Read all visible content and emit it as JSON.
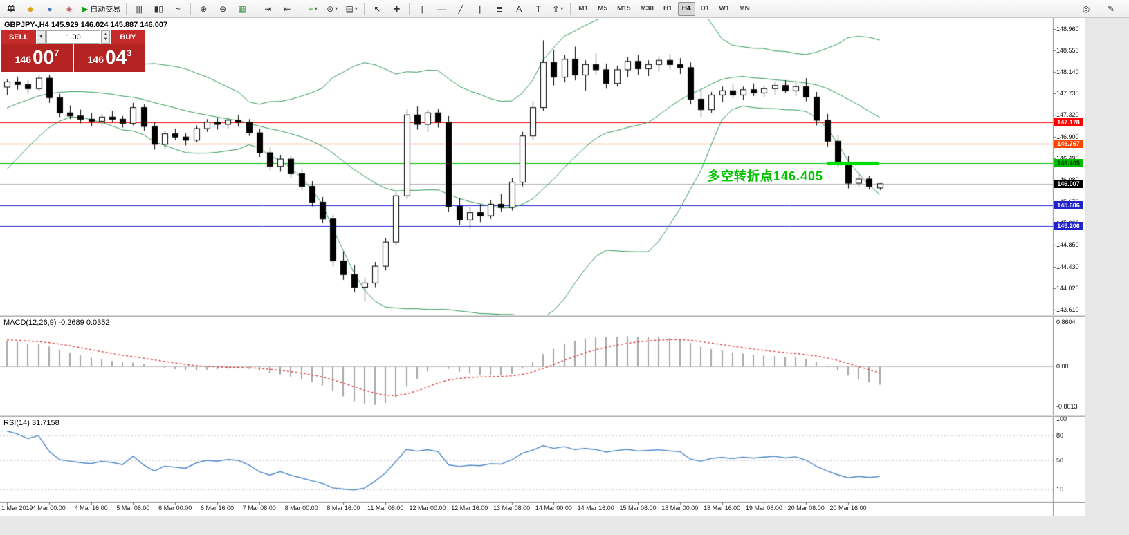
{
  "colors": {
    "oc_red": "#c62b2b",
    "oc_red_dark": "#b52222",
    "annotation_green": "#00c300",
    "autotrading_green": "#16a416",
    "bollinger_green": "#2e9958",
    "rsi_blue": "#4a86c8",
    "macd_histogram": "#a6a6a6",
    "macd_signal_red": "#dd2222"
  },
  "toolbar": {
    "groups": [
      {
        "id": "trade",
        "buttons": [
          {
            "name": "new-order-button",
            "icon": "order-ticket-icon",
            "glyph": "单",
            "color": "#111"
          },
          {
            "name": "chart-window-button",
            "icon": "chart-window-icon",
            "glyph": "◆",
            "color": "#d9a520"
          },
          {
            "name": "market-watch-button",
            "icon": "market-watch-icon",
            "glyph": "●",
            "color": "#4a7ebb"
          },
          {
            "name": "data-window-button",
            "icon": "data-window-icon",
            "glyph": "◈",
            "color": "#b85c5c"
          },
          {
            "name": "autotrading-button",
            "icon": "play-icon",
            "glyph": "▶",
            "color": "#16a416",
            "label": "自动交易"
          }
        ]
      },
      {
        "id": "chart-type",
        "buttons": [
          {
            "name": "bar-chart-button",
            "icon": "ohlc-bars-icon",
            "glyph": "|||"
          },
          {
            "name": "candlestick-chart-button",
            "icon": "candlestick-icon",
            "glyph": "▮▯"
          },
          {
            "name": "line-chart-button",
            "icon": "line-chart-icon",
            "glyph": "~"
          }
        ]
      },
      {
        "id": "zoom",
        "buttons": [
          {
            "name": "zoom-in-button",
            "icon": "magnifier-plus-icon",
            "glyph": "⊕"
          },
          {
            "name": "zoom-out-button",
            "icon": "magnifier-minus-icon",
            "glyph": "⊖"
          },
          {
            "name": "tile-windows-button",
            "icon": "tile-windows-icon",
            "glyph": "▦",
            "color": "#3f8f3f"
          }
        ]
      },
      {
        "id": "scroll",
        "buttons": [
          {
            "name": "auto-scroll-button",
            "icon": "auto-scroll-icon",
            "glyph": "⇥"
          },
          {
            "name": "chart-shift-button",
            "icon": "chart-shift-icon",
            "glyph": "⇤"
          }
        ]
      },
      {
        "id": "objects",
        "buttons": [
          {
            "name": "add-indicator-button",
            "icon": "plus-icon",
            "glyph": "+",
            "color": "#16a416",
            "dropdown": true
          },
          {
            "name": "periods-button",
            "icon": "clock-icon",
            "glyph": "⊙",
            "dropdown": true
          },
          {
            "name": "templates-button",
            "icon": "template-icon",
            "glyph": "▤",
            "dropdown": true
          }
        ]
      },
      {
        "id": "cursor",
        "buttons": [
          {
            "name": "cursor-button",
            "icon": "pointer-icon",
            "glyph": "↖"
          },
          {
            "name": "crosshair-button",
            "icon": "crosshair-icon",
            "glyph": "✚"
          }
        ]
      },
      {
        "id": "draw",
        "buttons": [
          {
            "name": "vertical-line-button",
            "icon": "vertical-line-icon",
            "glyph": "|"
          },
          {
            "name": "horizontal-line-button",
            "icon": "horizontal-line-icon",
            "glyph": "—"
          },
          {
            "name": "trendline-button",
            "icon": "trendline-icon",
            "glyph": "╱"
          },
          {
            "name": "channel-button",
            "icon": "channel-icon",
            "glyph": "∥"
          },
          {
            "name": "fibonacci-button",
            "icon": "fibonacci-icon",
            "glyph": "≣"
          },
          {
            "name": "text-button",
            "icon": "text-icon",
            "glyph": "A"
          },
          {
            "name": "text-label-button",
            "icon": "text-label-icon",
            "glyph": "T"
          },
          {
            "name": "arrows-button",
            "icon": "arrow-icon",
            "glyph": "⇧",
            "dropdown": true
          }
        ]
      }
    ],
    "timeframes": {
      "items": [
        "M1",
        "M5",
        "M15",
        "M30",
        "H1",
        "H4",
        "D1",
        "W1",
        "MN"
      ],
      "active": "H4"
    },
    "right_buttons": [
      {
        "name": "community-button",
        "icon": "circle-icon",
        "glyph": "◎"
      },
      {
        "name": "note-edit-button",
        "icon": "pencil-icon",
        "glyph": "✎"
      }
    ]
  },
  "one_click": {
    "sell_label": "SELL",
    "buy_label": "BUY",
    "volume": "1.00",
    "dropdown_icon": "▼",
    "spin_up_icon": "▲",
    "spin_down_icon": "▼",
    "sell_price": {
      "prefix": "146",
      "big": "00",
      "sup": "7"
    },
    "buy_price": {
      "prefix": "146",
      "big": "04",
      "sup": "3"
    }
  },
  "chart": {
    "title": "GBPJPY-,H4 145.929 146.024 145.887 146.007",
    "macd_label": "MACD(12,26,9) -0.2689 0.0352",
    "rsi_label": "RSI(14) 31.7158",
    "annotation": {
      "text": "多空转折点146.405",
      "color": "#00c300"
    }
  },
  "chart_data": {
    "type": "candlestick",
    "symbol": "GBPJPY-",
    "timeframe": "H4",
    "ohlc_display": {
      "open": "145.929",
      "high": "146.024",
      "low": "145.887",
      "close": "146.007"
    },
    "price_axis": {
      "labels": [
        "148.960",
        "148.550",
        "148.140",
        "147.730",
        "147.320",
        "146.900",
        "146.490",
        "146.080",
        "145.670",
        "145.260",
        "144.850",
        "144.430",
        "144.020",
        "143.610"
      ]
    },
    "time_labels": [
      "1 Mar 2019",
      "4 Mar 00:00",
      "4 Mar 16:00",
      "5 Mar 08:00",
      "6 Mar 00:00",
      "6 Mar 16:00",
      "7 Mar 08:00",
      "8 Mar 00:00",
      "8 Mar 16:00",
      "11 Mar 08:00",
      "12 Mar 00:00",
      "12 Mar 16:00",
      "13 Mar 08:00",
      "14 Mar 00:00",
      "14 Mar 16:00",
      "15 Mar 08:00",
      "18 Mar 00:00",
      "18 Mar 16:00",
      "19 Mar 08:00",
      "20 Mar 08:00",
      "20 Mar 16:00"
    ],
    "hlines": [
      {
        "price": 147.178,
        "label": "147.178",
        "color": "#ff0000",
        "text_color": "#ffffff"
      },
      {
        "price": 146.767,
        "label": "146.767",
        "color": "#ff4500",
        "text_color": "#ffffff"
      },
      {
        "price": 146.405,
        "label": "146.405",
        "color": "#00bb00",
        "text_color": "#003300"
      },
      {
        "price": 145.606,
        "label": "145.606",
        "color": "#2222cc",
        "text_color": "#ffffff"
      },
      {
        "price": 145.206,
        "label": "145.206",
        "color": "#2222cc",
        "text_color": "#ffffff"
      }
    ],
    "bid_marker": {
      "price": 146.007,
      "label": "146.007",
      "box_color": "#000000",
      "text_color": "#ffffff",
      "line_color": "#b4b4b4"
    },
    "turning_segment": {
      "price": 146.405,
      "from_candle": 78,
      "to_candle": 82.5,
      "color": "#00e000"
    },
    "bollinger": {
      "period": 20,
      "deviation": 2,
      "color": "#2e9958"
    },
    "macd": {
      "fast": 12,
      "slow": 26,
      "signal": 9,
      "value": "-0.2689",
      "signal_value": "0.0352",
      "axis_labels": [
        "0.8604",
        "0.00",
        "-0.8013"
      ],
      "histogram_color": "#a6a6a6",
      "signal_color": "#dd2222"
    },
    "rsi": {
      "period": 14,
      "value": "31.7158",
      "axis_labels": [
        "100",
        "80",
        "50",
        "15"
      ],
      "color": "#4a86c8"
    },
    "warmup_closes": [
      145.6,
      145.66,
      145.62,
      145.7,
      145.74,
      145.7,
      145.8,
      145.86,
      145.92,
      146.0,
      146.1,
      146.24,
      146.4,
      146.56,
      146.72,
      146.88,
      147.04,
      147.22,
      147.42,
      147.6,
      147.74,
      147.84,
      147.9,
      147.94,
      147.98,
      147.94,
      147.9,
      147.94,
      147.98,
      147.88
    ],
    "candles": [
      [
        147.85,
        148.0,
        147.7,
        147.95
      ],
      [
        147.95,
        148.05,
        147.8,
        147.9
      ],
      [
        147.9,
        147.98,
        147.72,
        147.82
      ],
      [
        147.82,
        148.08,
        147.78,
        148.02
      ],
      [
        148.02,
        148.08,
        147.55,
        147.65
      ],
      [
        147.65,
        147.72,
        147.28,
        147.36
      ],
      [
        147.36,
        147.5,
        147.24,
        147.3
      ],
      [
        147.3,
        147.42,
        147.16,
        147.24
      ],
      [
        147.24,
        147.36,
        147.1,
        147.2
      ],
      [
        147.2,
        147.34,
        147.12,
        147.28
      ],
      [
        147.28,
        147.4,
        147.18,
        147.24
      ],
      [
        147.24,
        147.3,
        147.08,
        147.16
      ],
      [
        147.16,
        147.55,
        147.12,
        147.46
      ],
      [
        147.46,
        147.52,
        147.02,
        147.1
      ],
      [
        147.1,
        147.18,
        146.66,
        146.76
      ],
      [
        146.76,
        147.02,
        146.68,
        146.96
      ],
      [
        146.96,
        147.06,
        146.84,
        146.9
      ],
      [
        146.9,
        146.98,
        146.74,
        146.84
      ],
      [
        146.84,
        147.12,
        146.8,
        147.06
      ],
      [
        147.06,
        147.24,
        147.0,
        147.18
      ],
      [
        147.18,
        147.26,
        147.04,
        147.14
      ],
      [
        147.14,
        147.28,
        147.06,
        147.22
      ],
      [
        147.22,
        147.32,
        147.1,
        147.18
      ],
      [
        147.18,
        147.24,
        146.92,
        146.98
      ],
      [
        146.98,
        147.06,
        146.52,
        146.6
      ],
      [
        146.6,
        146.7,
        146.26,
        146.34
      ],
      [
        146.34,
        146.56,
        146.24,
        146.48
      ],
      [
        146.48,
        146.54,
        146.12,
        146.2
      ],
      [
        146.2,
        146.3,
        145.88,
        145.96
      ],
      [
        145.96,
        146.06,
        145.58,
        145.66
      ],
      [
        145.66,
        145.76,
        145.26,
        145.34
      ],
      [
        145.34,
        145.42,
        144.44,
        144.54
      ],
      [
        144.54,
        144.72,
        144.18,
        144.28
      ],
      [
        144.28,
        144.46,
        143.94,
        144.04
      ],
      [
        144.04,
        144.22,
        143.76,
        144.12
      ],
      [
        144.12,
        144.52,
        144.04,
        144.44
      ],
      [
        144.44,
        144.98,
        144.36,
        144.9
      ],
      [
        144.9,
        145.88,
        144.84,
        145.78
      ],
      [
        145.78,
        147.44,
        145.72,
        147.32
      ],
      [
        147.32,
        147.48,
        147.04,
        147.14
      ],
      [
        147.14,
        147.42,
        147.0,
        147.36
      ],
      [
        147.36,
        147.44,
        147.08,
        147.18
      ],
      [
        147.18,
        147.3,
        145.48,
        145.58
      ],
      [
        145.58,
        145.74,
        145.22,
        145.32
      ],
      [
        145.32,
        145.56,
        145.16,
        145.46
      ],
      [
        145.46,
        145.62,
        145.28,
        145.4
      ],
      [
        145.4,
        145.7,
        145.34,
        145.62
      ],
      [
        145.62,
        145.82,
        145.48,
        145.56
      ],
      [
        145.56,
        146.12,
        145.5,
        146.04
      ],
      [
        146.04,
        147.0,
        145.96,
        146.92
      ],
      [
        146.92,
        147.58,
        146.84,
        147.46
      ],
      [
        147.46,
        148.74,
        147.4,
        148.32
      ],
      [
        148.32,
        148.56,
        147.88,
        148.04
      ],
      [
        148.04,
        148.46,
        147.94,
        148.38
      ],
      [
        148.38,
        148.62,
        147.98,
        148.08
      ],
      [
        148.08,
        148.36,
        147.78,
        148.28
      ],
      [
        148.28,
        148.5,
        148.08,
        148.18
      ],
      [
        148.18,
        148.3,
        147.82,
        147.92
      ],
      [
        147.92,
        148.26,
        147.86,
        148.18
      ],
      [
        148.18,
        148.42,
        148.04,
        148.34
      ],
      [
        148.34,
        148.46,
        148.08,
        148.2
      ],
      [
        148.2,
        148.36,
        148.06,
        148.28
      ],
      [
        148.28,
        148.44,
        148.14,
        148.36
      ],
      [
        148.36,
        148.48,
        148.18,
        148.28
      ],
      [
        148.28,
        148.4,
        148.1,
        148.22
      ],
      [
        148.22,
        148.32,
        147.52,
        147.62
      ],
      [
        147.62,
        147.8,
        147.28,
        147.42
      ],
      [
        147.42,
        147.76,
        147.36,
        147.7
      ],
      [
        147.7,
        147.86,
        147.56,
        147.78
      ],
      [
        147.78,
        147.9,
        147.64,
        147.7
      ],
      [
        147.7,
        147.86,
        147.6,
        147.8
      ],
      [
        147.8,
        147.92,
        147.68,
        147.74
      ],
      [
        147.74,
        147.88,
        147.66,
        147.82
      ],
      [
        147.82,
        147.96,
        147.7,
        147.88
      ],
      [
        147.88,
        147.98,
        147.74,
        147.78
      ],
      [
        147.78,
        147.94,
        147.68,
        147.86
      ],
      [
        147.86,
        148.02,
        147.58,
        147.66
      ],
      [
        147.66,
        147.76,
        147.12,
        147.22
      ],
      [
        147.22,
        147.34,
        146.72,
        146.82
      ],
      [
        146.82,
        146.94,
        146.32,
        146.42
      ],
      [
        146.42,
        146.54,
        145.92,
        146.02
      ],
      [
        146.02,
        146.2,
        145.94,
        146.1
      ],
      [
        146.1,
        146.16,
        145.9,
        145.96
      ],
      [
        145.93,
        146.02,
        145.89,
        146.01
      ]
    ]
  }
}
